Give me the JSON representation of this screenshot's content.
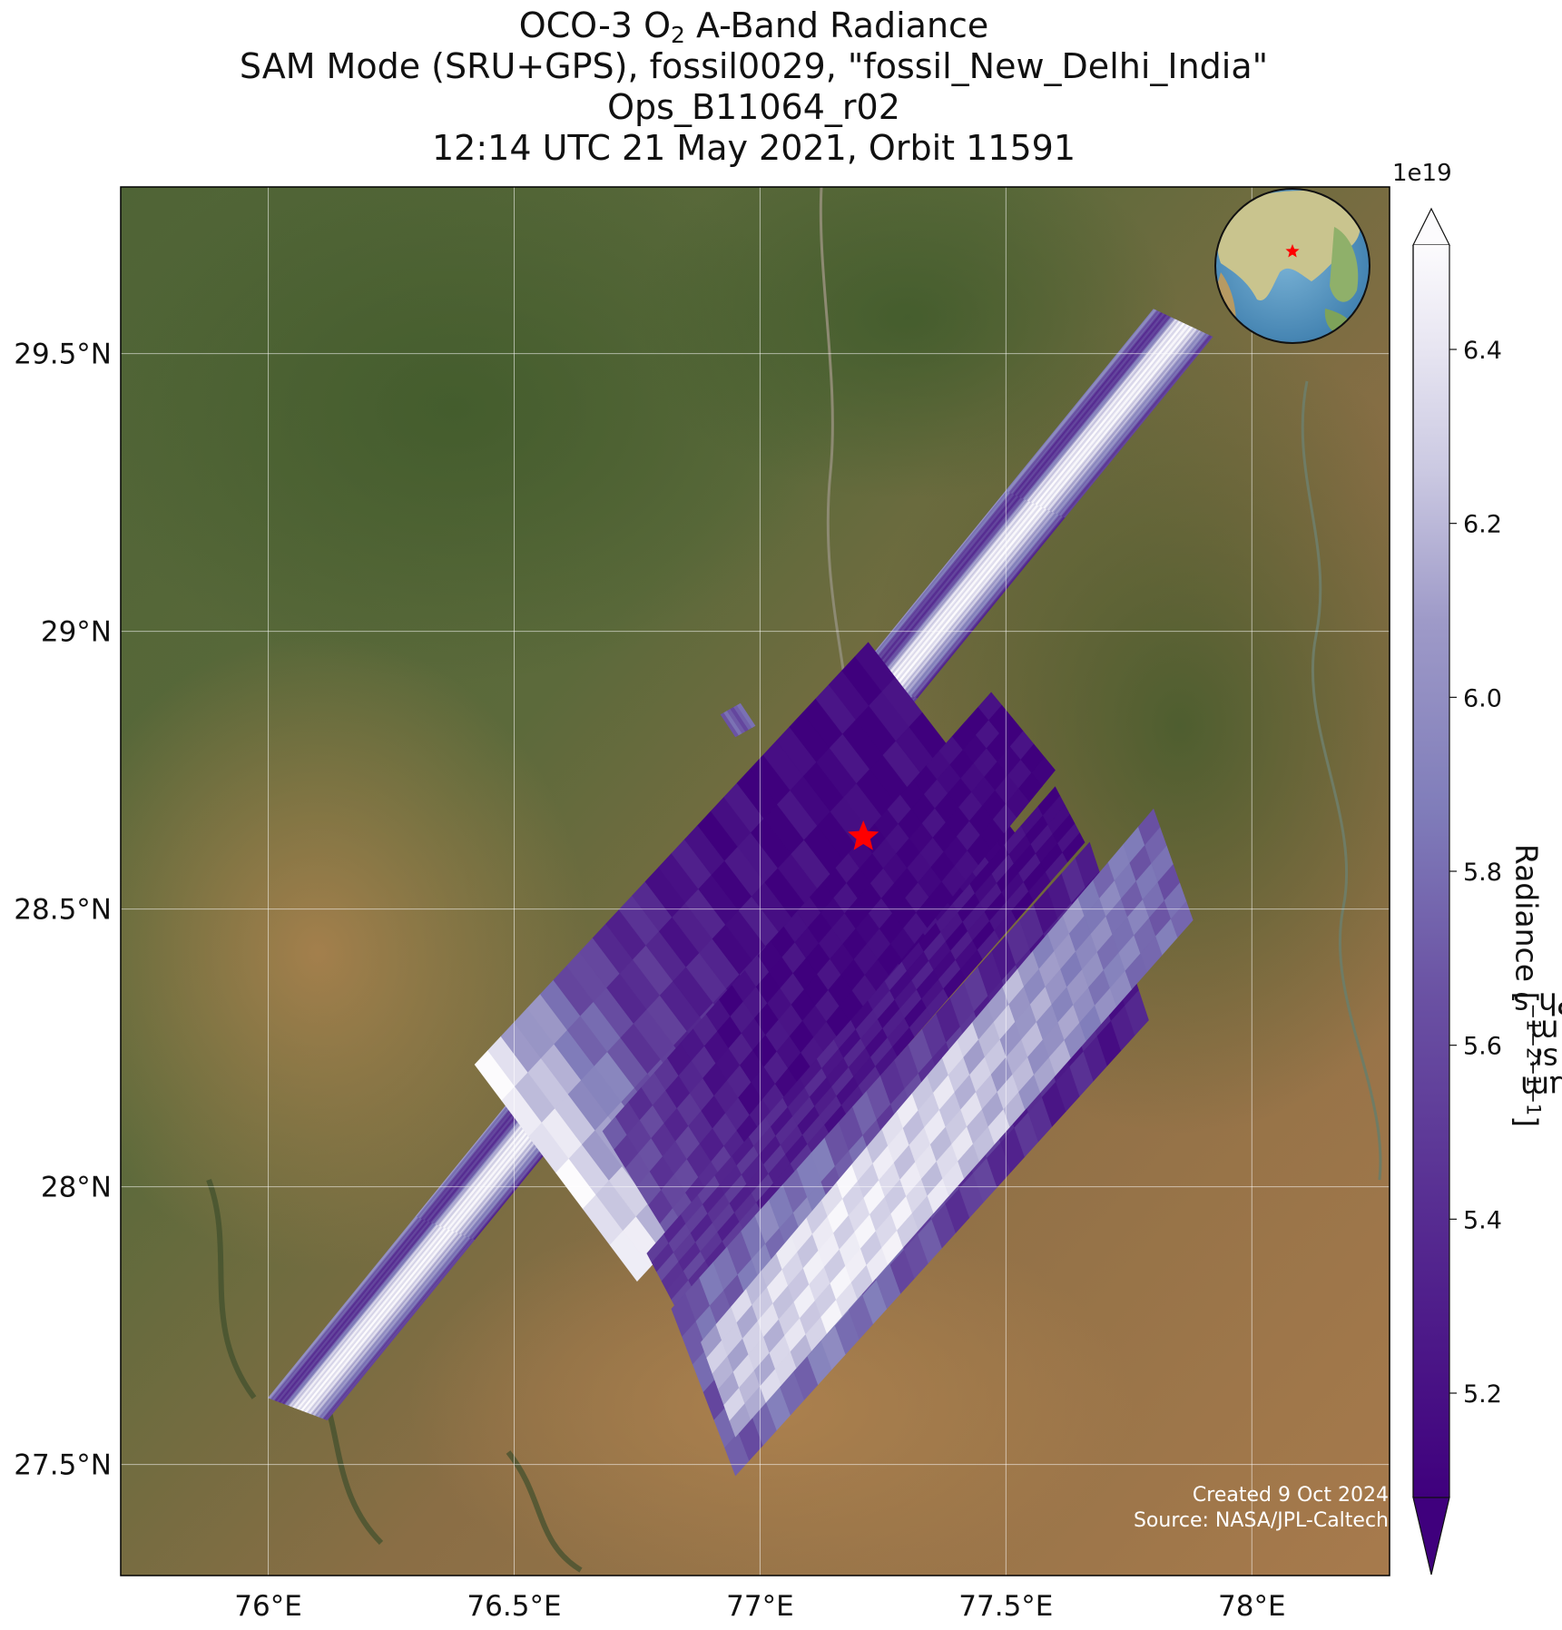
{
  "title": {
    "line1_prefix": "OCO-3 O",
    "line1_sub": "2",
    "line1_suffix": " A-Band Radiance",
    "line2": "SAM Mode (SRU+GPS), fossil0029, \"fossil_New_Delhi_India\"",
    "line3": "Ops_B11064_r02",
    "line4": "12:14 UTC 21 May 2021, Orbit 11591"
  },
  "map": {
    "lon_range": [
      75.7,
      78.28
    ],
    "lat_range": [
      27.3,
      29.8
    ],
    "lon_ticks": [
      76.0,
      76.5,
      77.0,
      77.5,
      78.0
    ],
    "lon_tick_labels": [
      "76°E",
      "76.5°E",
      "77°E",
      "77.5°E",
      "78°E"
    ],
    "lat_ticks": [
      27.5,
      28.0,
      28.5,
      29.0,
      29.5
    ],
    "lat_tick_labels": [
      "27.5°N",
      "28°N",
      "28.5°N",
      "29°N",
      "29.5°N"
    ],
    "grid": true,
    "target_marker": {
      "lon": 77.21,
      "lat": 28.63,
      "color": "#ff0000",
      "icon": "red-star-icon"
    },
    "inset_globe": {
      "position": "top-right",
      "icon": "globe-icon"
    }
  },
  "swaths": [
    {
      "corners": [
        [
          76.0,
          27.62
        ],
        [
          76.12,
          27.58
        ],
        [
          77.92,
          29.53
        ],
        [
          77.8,
          29.58
        ]
      ],
      "values": [
        6.0,
        5.5,
        5.5,
        6.3,
        6.45,
        6.45,
        6.2,
        5.9,
        5.4
      ]
    },
    {
      "corners": [
        [
          76.42,
          28.22
        ],
        [
          77.22,
          28.98
        ],
        [
          77.55,
          28.6
        ],
        [
          76.75,
          27.83
        ]
      ],
      "values": [
        6.45,
        5.5,
        5.2,
        5.1,
        5.15
      ]
    },
    {
      "corners": [
        [
          76.68,
          28.1
        ],
        [
          77.47,
          28.89
        ],
        [
          77.6,
          28.75
        ],
        [
          76.82,
          27.9
        ]
      ],
      "values": [
        5.6,
        5.2,
        5.1,
        5.1,
        5.1
      ]
    },
    {
      "corners": [
        [
          76.77,
          27.88
        ],
        [
          77.6,
          28.72
        ],
        [
          77.66,
          28.62
        ],
        [
          76.83,
          27.78
        ]
      ],
      "values": [
        5.5,
        5.3,
        5.2,
        5.1
      ]
    },
    {
      "corners": [
        [
          76.82,
          27.78
        ],
        [
          77.67,
          28.62
        ],
        [
          77.79,
          28.3
        ],
        [
          76.95,
          27.48
        ]
      ],
      "values": [
        5.7,
        5.9,
        5.55,
        5.35,
        5.25
      ]
    },
    {
      "corners": [
        [
          76.88,
          27.72
        ],
        [
          77.8,
          28.68
        ],
        [
          77.88,
          28.48
        ],
        [
          76.95,
          27.55
        ]
      ],
      "values": [
        6.2,
        6.4,
        6.3,
        6.0,
        5.7
      ]
    },
    {
      "corners": [
        [
          76.92,
          28.85
        ],
        [
          76.96,
          28.87
        ],
        [
          76.99,
          28.83
        ],
        [
          76.95,
          28.81
        ]
      ],
      "values": [
        5.7
      ]
    }
  ],
  "colorbar": {
    "label_main": "Radiance [Ph s",
    "label_parts": [
      [
        "Ph s",
        "−1"
      ],
      [
        " m",
        "−2"
      ],
      [
        " sr",
        "−1"
      ],
      [
        "µm",
        "−1"
      ]
    ],
    "exponent": "1e19",
    "vmin": 5.08,
    "vmax": 6.52,
    "extend": "both",
    "ticks": [
      5.2,
      5.4,
      5.6,
      5.8,
      6.0,
      6.2,
      6.4
    ],
    "tick_labels": [
      "5.2",
      "5.4",
      "5.6",
      "5.8",
      "6.0",
      "6.2",
      "6.4"
    ],
    "cmap_dark": "#3f007d",
    "cmap_mid": "#807dba",
    "cmap_light": "#fcfbfd"
  },
  "credits": {
    "line1": "Created 9 Oct 2024",
    "line2": "Source: NASA/JPL-Caltech"
  }
}
